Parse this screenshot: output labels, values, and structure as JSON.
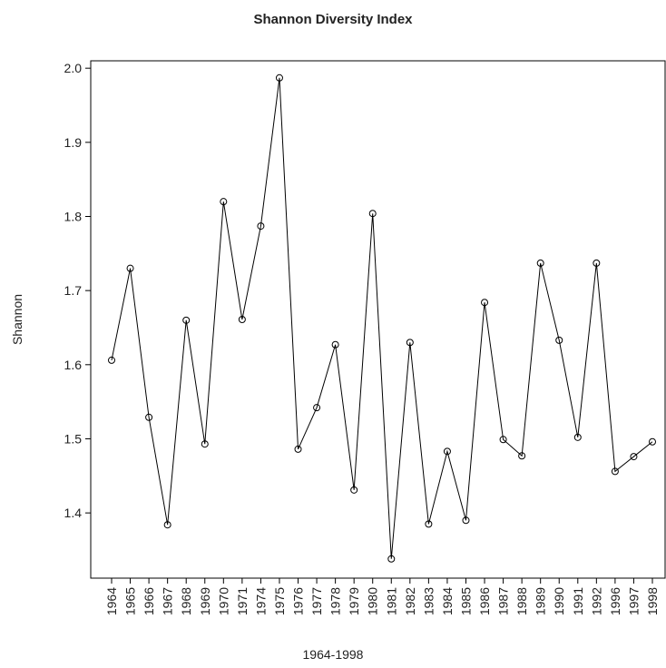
{
  "chart_data": {
    "type": "line",
    "title": "Shannon Diversity Index",
    "xlabel": "1964-1998",
    "ylabel": "Shannon",
    "categories": [
      "1964",
      "1965",
      "1966",
      "1967",
      "1968",
      "1969",
      "1970",
      "1971",
      "1974",
      "1975",
      "1976",
      "1977",
      "1978",
      "1979",
      "1980",
      "1981",
      "1982",
      "1983",
      "1984",
      "1985",
      "1986",
      "1987",
      "1988",
      "1989",
      "1990",
      "1991",
      "1992",
      "1996",
      "1997",
      "1998"
    ],
    "values": [
      1.606,
      1.73,
      1.529,
      1.384,
      1.66,
      1.493,
      1.82,
      1.661,
      1.787,
      1.987,
      1.486,
      1.542,
      1.627,
      1.431,
      1.804,
      1.338,
      1.63,
      1.385,
      1.483,
      1.39,
      1.684,
      1.499,
      1.477,
      1.737,
      1.633,
      1.502,
      1.737,
      1.456,
      1.476,
      1.496
    ],
    "color": "#000000",
    "ylim": [
      1.312,
      2.01
    ],
    "yticks": [
      1.4,
      1.5,
      1.6,
      1.7,
      1.8,
      1.9,
      {
        "value": 2.0,
        "label": "2.0"
      }
    ]
  }
}
